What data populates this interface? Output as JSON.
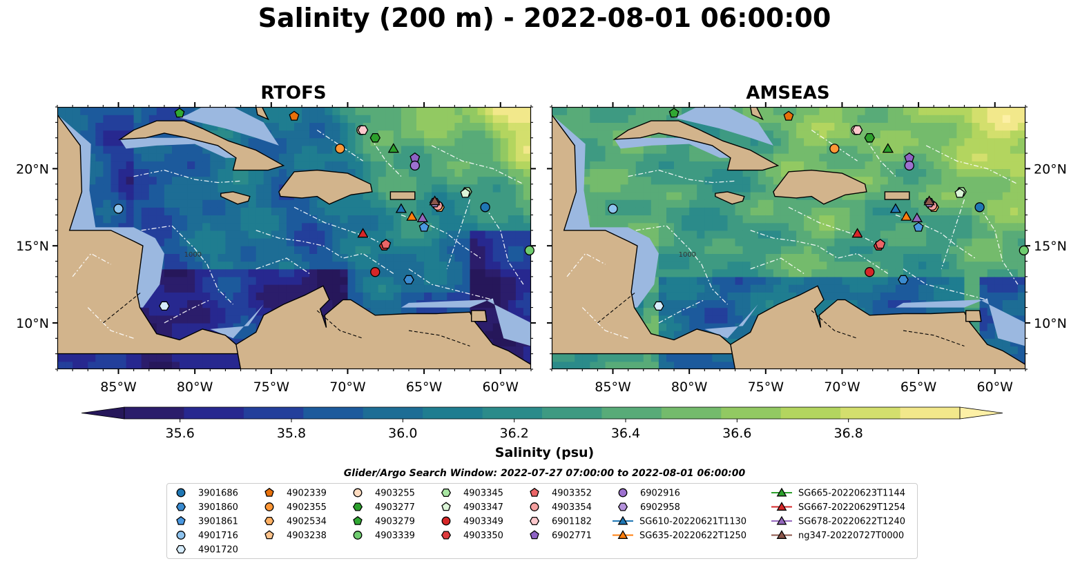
{
  "title": "Salinity (200 m) - 2022-08-01 06:00:00",
  "panels": [
    {
      "title": "RTOFS",
      "scheme": "rtofs"
    },
    {
      "title": "AMSEAS",
      "scheme": "amseas"
    }
  ],
  "map": {
    "lon_range": [
      -89,
      -58
    ],
    "lat_range": [
      7,
      24
    ],
    "lon_ticks": [
      {
        "value": -85,
        "label": "85°W"
      },
      {
        "value": -80,
        "label": "80°W"
      },
      {
        "value": -75,
        "label": "75°W"
      },
      {
        "value": -70,
        "label": "70°W"
      },
      {
        "value": -65,
        "label": "65°W"
      },
      {
        "value": -60,
        "label": "60°W"
      }
    ],
    "lat_ticks": [
      {
        "value": 10,
        "label": "10°N"
      },
      {
        "value": 15,
        "label": "15°N"
      },
      {
        "value": 20,
        "label": "20°N"
      }
    ],
    "contour_labels": [
      "1000"
    ],
    "colors": {
      "land": "#d2b48c",
      "shallow_water": "#9bb8e0",
      "coastline": "#000000",
      "eez_boundary": "#ffffff"
    }
  },
  "colorbar": {
    "label": "Salinity (psu)",
    "vmin": 35.5,
    "vmax": 37.0,
    "ticks": [
      {
        "value": 35.6,
        "label": "35.6"
      },
      {
        "value": 35.8,
        "label": "35.8"
      },
      {
        "value": 36.0,
        "label": "36.0"
      },
      {
        "value": 36.2,
        "label": "36.2"
      },
      {
        "value": 36.4,
        "label": "36.4"
      },
      {
        "value": 36.6,
        "label": "36.6"
      },
      {
        "value": 36.8,
        "label": "36.8"
      }
    ],
    "colors": [
      "#2b1d6b",
      "#27288f",
      "#233f9b",
      "#1c5a9c",
      "#1d6d95",
      "#1f7d90",
      "#2b8b8a",
      "#3e9a82",
      "#58ab78",
      "#74bb6c",
      "#92c962",
      "#b3d55f",
      "#d3df6d",
      "#f2e88b"
    ],
    "extend_color_low": "#26175a",
    "extend_color_high": "#fdf0a6"
  },
  "legend": {
    "title": "Glider/Argo Search Window: 2022-07-27 07:00:00 to 2022-08-01 06:00:00",
    "columns": [
      [
        {
          "label": "3901686",
          "marker": "circle",
          "color": "#1f77b4"
        },
        {
          "label": "3901860",
          "marker": "hexagon",
          "color": "#3a8bd0"
        },
        {
          "label": "3901861",
          "marker": "pentagon",
          "color": "#4a98e0"
        },
        {
          "label": "4901716",
          "marker": "circle",
          "color": "#8ec3ee"
        },
        {
          "label": "4901720",
          "marker": "hexagon",
          "color": "#d6ecfb"
        }
      ],
      [
        {
          "label": "4902339",
          "marker": "pentagon",
          "color": "#e8700a"
        },
        {
          "label": "4902355",
          "marker": "circle",
          "color": "#ff9736"
        },
        {
          "label": "4902534",
          "marker": "hexagon",
          "color": "#ffb164"
        },
        {
          "label": "4903238",
          "marker": "pentagon",
          "color": "#ffc48c"
        }
      ],
      [
        {
          "label": "4903255",
          "marker": "circle",
          "color": "#ffdcc0"
        },
        {
          "label": "4903277",
          "marker": "hexagon",
          "color": "#2ca02c"
        },
        {
          "label": "4903279",
          "marker": "pentagon",
          "color": "#31a833"
        },
        {
          "label": "4903339",
          "marker": "circle",
          "color": "#6fcc6f"
        }
      ],
      [
        {
          "label": "4903345",
          "marker": "hexagon",
          "color": "#a8e6a2"
        },
        {
          "label": "4903347",
          "marker": "pentagon",
          "color": "#dcf5d8"
        },
        {
          "label": "4903349",
          "marker": "circle",
          "color": "#d62728"
        },
        {
          "label": "4903350",
          "marker": "hexagon",
          "color": "#df3b3e"
        }
      ],
      [
        {
          "label": "4903352",
          "marker": "pentagon",
          "color": "#ec6567"
        },
        {
          "label": "4903354",
          "marker": "circle",
          "color": "#f5a0a0"
        },
        {
          "label": "6901182",
          "marker": "hexagon",
          "color": "#fcc8cc"
        },
        {
          "label": "6902771",
          "marker": "pentagon",
          "color": "#8e62c4"
        }
      ],
      [
        {
          "label": "6902916",
          "marker": "circle",
          "color": "#9d71cf"
        },
        {
          "label": "6902958",
          "marker": "hexagon",
          "color": "#b592dc"
        },
        {
          "label": "SG610-20220621T1130",
          "marker": "triangle",
          "color": "#1f77b4",
          "line": true
        },
        {
          "label": "SG635-20220622T1250",
          "marker": "triangle",
          "color": "#ff7f0e",
          "line": true
        }
      ],
      [
        {
          "label": "SG665-20220623T1144",
          "marker": "triangle",
          "color": "#2ca02c",
          "line": true
        },
        {
          "label": "SG667-20220629T1254",
          "marker": "triangle",
          "color": "#d62728",
          "line": true
        },
        {
          "label": "SG678-20220622T1240",
          "marker": "triangle",
          "color": "#9467bd",
          "line": true
        },
        {
          "label": "ng347-20220727T0000",
          "marker": "triangle",
          "color": "#8c564b",
          "line": true
        }
      ]
    ]
  }
}
